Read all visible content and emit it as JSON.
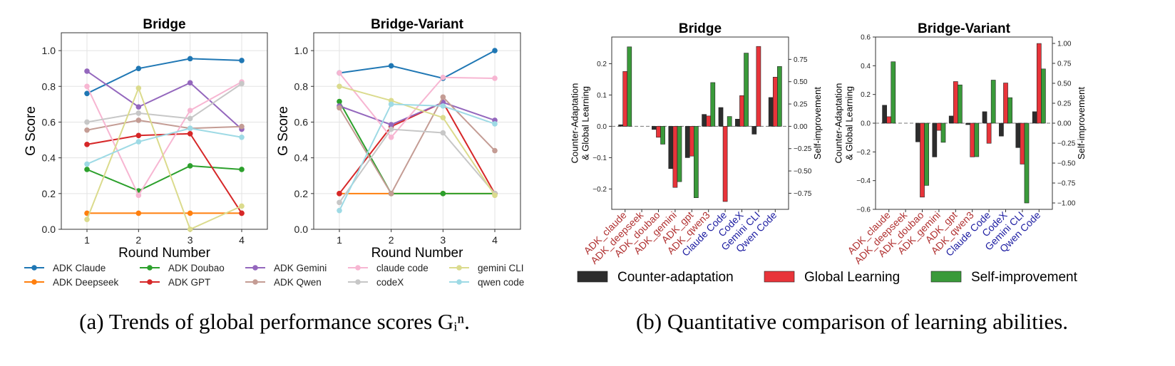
{
  "captions": {
    "a": "(a) Trends of global performance scores Gᵢⁿ.",
    "b": "(b) Quantitative comparison of learning abilities."
  },
  "chart_data": [
    {
      "type": "line",
      "title": "Bridge",
      "xlabel": "Round Number",
      "ylabel": "G Score",
      "x": [
        1,
        2,
        3,
        4
      ],
      "ylim": [
        0,
        1.1
      ],
      "yticks": [
        0.0,
        0.2,
        0.4,
        0.6,
        0.8,
        1.0
      ],
      "series": [
        {
          "name": "ADK Claude",
          "color": "#1f77b4",
          "values": [
            0.76,
            0.9,
            0.955,
            0.945
          ]
        },
        {
          "name": "ADK Deepseek",
          "color": "#ff7f0e",
          "values": [
            0.09,
            0.09,
            0.09,
            0.09
          ]
        },
        {
          "name": "ADK Doubao",
          "color": "#2ca02c",
          "values": [
            0.335,
            0.215,
            0.355,
            0.335
          ]
        },
        {
          "name": "ADK GPT",
          "color": "#d62728",
          "values": [
            0.475,
            0.525,
            0.535,
            0.09
          ]
        },
        {
          "name": "ADK Gemini",
          "color": "#9467bd",
          "values": [
            0.885,
            0.685,
            0.82,
            0.56
          ]
        },
        {
          "name": "ADK Qwen",
          "color": "#c49c94",
          "values": [
            0.555,
            0.61,
            0.565,
            0.575
          ]
        },
        {
          "name": "claude code",
          "color": "#f7b6d2",
          "values": [
            0.8,
            0.19,
            0.665,
            0.825
          ]
        },
        {
          "name": "codeX",
          "color": "#c7c7c7",
          "values": [
            0.6,
            0.65,
            0.62,
            0.815
          ]
        },
        {
          "name": "gemini CLI",
          "color": "#dbdb8d",
          "values": [
            0.055,
            0.79,
            0.0,
            0.13
          ]
        },
        {
          "name": "qwen code",
          "color": "#9edae5",
          "values": [
            0.365,
            0.49,
            0.565,
            0.515
          ]
        }
      ]
    },
    {
      "type": "line",
      "title": "Bridge-Variant",
      "xlabel": "Round Number",
      "ylabel": "G Score",
      "x": [
        1,
        2,
        3,
        4
      ],
      "ylim": [
        0,
        1.1
      ],
      "yticks": [
        0.0,
        0.2,
        0.4,
        0.6,
        0.8,
        1.0
      ],
      "series": [
        {
          "name": "ADK Claude",
          "color": "#1f77b4",
          "values": [
            0.875,
            0.915,
            0.845,
            1.0
          ]
        },
        {
          "name": "ADK Deepseek",
          "color": "#ff7f0e",
          "values": [
            0.2,
            0.2,
            0.2,
            0.2
          ]
        },
        {
          "name": "ADK Doubao",
          "color": "#2ca02c",
          "values": [
            0.715,
            0.2,
            0.2,
            0.2
          ]
        },
        {
          "name": "ADK GPT",
          "color": "#d62728",
          "values": [
            0.2,
            0.575,
            0.71,
            0.2
          ]
        },
        {
          "name": "ADK Gemini",
          "color": "#9467bd",
          "values": [
            0.69,
            0.585,
            0.71,
            0.61
          ]
        },
        {
          "name": "ADK Qwen",
          "color": "#c49c94",
          "values": [
            0.68,
            0.2,
            0.74,
            0.44
          ]
        },
        {
          "name": "claude code",
          "color": "#f7b6d2",
          "values": [
            0.875,
            0.515,
            0.85,
            0.845
          ]
        },
        {
          "name": "codeX",
          "color": "#c7c7c7",
          "values": [
            0.15,
            0.56,
            0.54,
            0.2
          ]
        },
        {
          "name": "gemini CLI",
          "color": "#dbdb8d",
          "values": [
            0.8,
            0.72,
            0.625,
            0.19
          ]
        },
        {
          "name": "qwen code",
          "color": "#9edae5",
          "values": [
            0.105,
            0.7,
            0.69,
            0.59
          ]
        }
      ]
    },
    {
      "type": "bar",
      "title": "Bridge",
      "ylabel": "Counter-Adaptation\n& Global Learning",
      "y2label": "Self-improvement",
      "categories": [
        "ADK_claude",
        "ADK_deepseek",
        "ADK_doubao",
        "ADK_gemini",
        "ADK_gpt",
        "ADK_qwen3",
        "Claude Code",
        "CodeX",
        "Gemini CLI",
        "Qwen Code"
      ],
      "category_colors": [
        "#b03030",
        "#b03030",
        "#b03030",
        "#b03030",
        "#b03030",
        "#b03030",
        "#1a1aa0",
        "#1a1aa0",
        "#1a1aa0",
        "#1a1aa0"
      ],
      "ylim": [
        -0.265,
        0.285
      ],
      "yticks": [
        -0.2,
        -0.1,
        0.0,
        0.1,
        0.2
      ],
      "y2lim": [
        -0.93,
        1.0
      ],
      "y2ticks": [
        -0.75,
        -0.5,
        -0.25,
        0.0,
        0.25,
        0.5,
        0.75
      ],
      "series": [
        {
          "name": "Counter-adaptation",
          "color": "#2d2d2d",
          "axis": "left",
          "values": [
            0.005,
            0.0,
            -0.01,
            -0.135,
            -0.1,
            0.038,
            0.06,
            0.023,
            -0.025,
            0.092
          ]
        },
        {
          "name": "Global Learning",
          "color": "#e8343a",
          "axis": "left",
          "values": [
            0.175,
            0.0,
            -0.035,
            -0.195,
            -0.095,
            0.033,
            -0.24,
            0.098,
            0.255,
            0.157
          ]
        },
        {
          "name": "Self-improvement",
          "color": "#3a9a3a",
          "axis": "right",
          "values": [
            0.89,
            0.0,
            -0.2,
            -0.62,
            -0.8,
            0.49,
            0.11,
            0.82,
            0.0,
            0.67
          ]
        }
      ]
    },
    {
      "type": "bar",
      "title": "Bridge-Variant",
      "ylabel": "Counter-Adaptation\n& Global Learning",
      "y2label": "Self-improvement",
      "categories": [
        "ADK_claude",
        "ADK_deepseek",
        "ADK_doubao",
        "ADK_gemini",
        "ADK_gpt",
        "ADK_qwen3",
        "Claude Code",
        "CodeX",
        "Gemini CLI",
        "Qwen Code"
      ],
      "category_colors": [
        "#b03030",
        "#b03030",
        "#b03030",
        "#b03030",
        "#b03030",
        "#b03030",
        "#1a1aa0",
        "#1a1aa0",
        "#1a1aa0",
        "#1a1aa0"
      ],
      "ylim": [
        -0.6,
        0.6
      ],
      "yticks": [
        -0.6,
        -0.4,
        -0.2,
        0.0,
        0.2,
        0.4,
        0.6
      ],
      "y2lim": [
        -1.08,
        1.08
      ],
      "y2ticks": [
        -1.0,
        -0.75,
        -0.5,
        -0.25,
        0.0,
        0.25,
        0.5,
        0.75,
        1.0
      ],
      "series": [
        {
          "name": "Counter-adaptation",
          "color": "#2d2d2d",
          "axis": "left",
          "values": [
            0.125,
            0.0,
            -0.13,
            -0.235,
            0.05,
            -0.01,
            0.08,
            -0.09,
            -0.17,
            0.08
          ]
        },
        {
          "name": "Global Learning",
          "color": "#e8343a",
          "axis": "left",
          "values": [
            0.045,
            0.0,
            -0.515,
            -0.05,
            0.29,
            -0.235,
            -0.14,
            0.28,
            -0.285,
            0.555
          ]
        },
        {
          "name": "Self-improvement",
          "color": "#3a9a3a",
          "axis": "right",
          "values": [
            0.77,
            0.0,
            -0.78,
            -0.24,
            0.48,
            -0.42,
            0.54,
            0.32,
            -1.0,
            0.68
          ]
        }
      ]
    }
  ],
  "fmt": {
    "a_ticks": [
      "0.0",
      "0.2",
      "0.4",
      "0.6",
      "0.8",
      "1.0"
    ],
    "b1_left": [
      "−0.2",
      "−0.1",
      "0.0",
      "0.1",
      "0.2"
    ],
    "b1_right": [
      "−0.75",
      "−0.50",
      "−0.25",
      "0.00",
      "0.25",
      "0.50",
      "0.75"
    ],
    "b2_left": [
      "−0.6",
      "−0.4",
      "−0.2",
      "0.0",
      "0.2",
      "0.4",
      "0.6"
    ],
    "b2_right": [
      "−1.00",
      "−0.75",
      "−0.50",
      "−0.25",
      "0.00",
      "0.25",
      "0.50",
      "0.75",
      "1.00"
    ]
  }
}
